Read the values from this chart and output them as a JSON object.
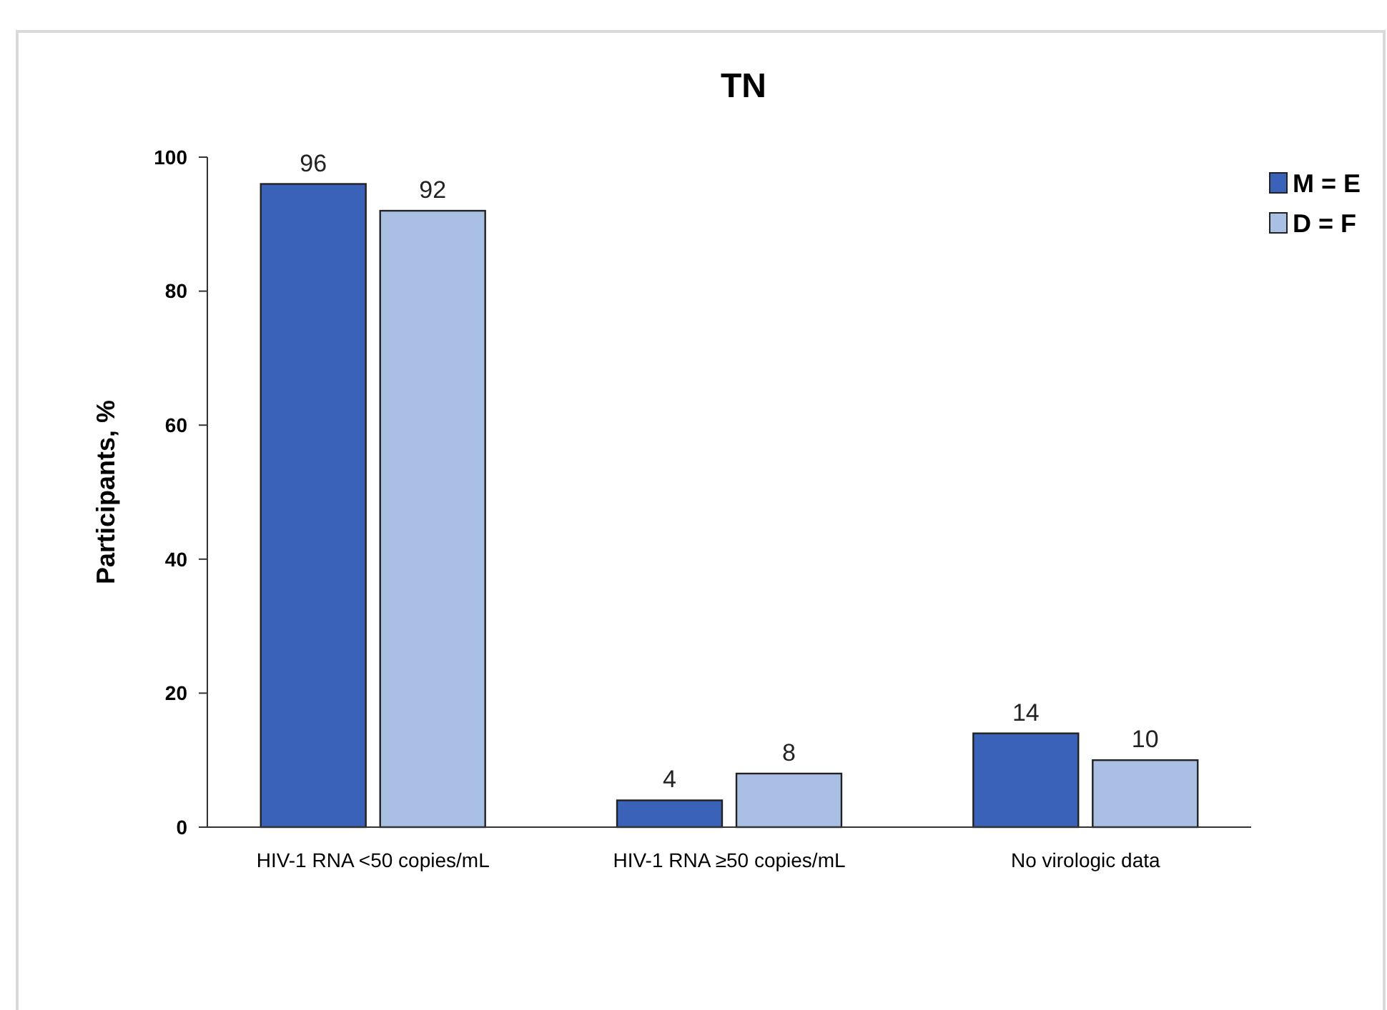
{
  "chart_data": {
    "type": "bar",
    "title": "TN",
    "ylabel": "Participants, %",
    "categories": [
      "HIV-1 RNA <50 copies/mL",
      "HIV-1 RNA ≥50 copies/mL",
      "No virologic data"
    ],
    "series": [
      {
        "name": "M = E",
        "color": "#3a62b8",
        "values": [
          96,
          4,
          14
        ]
      },
      {
        "name": "D = F",
        "color": "#a9bfe3",
        "values": [
          92,
          8,
          10
        ]
      }
    ],
    "ylim": [
      0,
      100
    ],
    "yticks": [
      0,
      20,
      40,
      60,
      80,
      100
    ],
    "grid": false,
    "legend": "top right",
    "data_labels": true
  }
}
